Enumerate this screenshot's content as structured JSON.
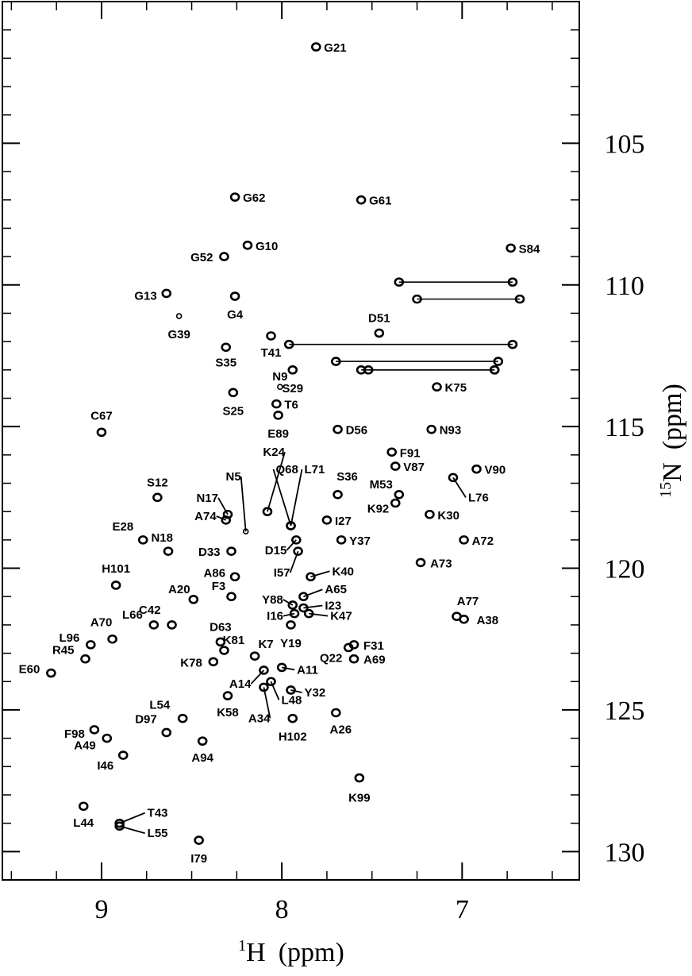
{
  "chart_data": {
    "type": "scatter",
    "title": "",
    "xlabel": {
      "isotope": "1",
      "nucleus": "H",
      "unit": "(ppm)"
    },
    "ylabel": {
      "isotope": "15",
      "nucleus": "N",
      "unit": "(ppm)"
    },
    "xlim": [
      9.55,
      6.35
    ],
    "ylim": [
      100.0,
      131.0
    ],
    "x_major_ticks": [
      9,
      8,
      7
    ],
    "x_minor_ticks": [
      9.5,
      9.25,
      8.75,
      8.5,
      8.25,
      7.75,
      7.5,
      7.25,
      6.75,
      6.5
    ],
    "y_major_ticks": [
      105,
      110,
      115,
      120,
      125,
      130
    ],
    "y_minor_ticks": [
      101,
      102,
      103,
      104,
      106,
      107,
      108,
      109,
      111,
      112,
      113,
      114,
      116,
      117,
      118,
      119,
      121,
      122,
      123,
      124,
      126,
      127,
      128,
      129
    ],
    "grid": false,
    "legend": "none",
    "series": [
      {
        "points": [
          {
            "label": "G21",
            "x": 7.81,
            "y": 101.6
          },
          {
            "label": "G62",
            "x": 8.26,
            "y": 106.9
          },
          {
            "label": "G61",
            "x": 7.56,
            "y": 107.0
          },
          {
            "label": "G10",
            "x": 8.19,
            "y": 108.6
          },
          {
            "label": "G52",
            "x": 8.32,
            "y": 109.0
          },
          {
            "label": "S84",
            "x": 6.73,
            "y": 108.7
          },
          {
            "label": "G13",
            "x": 8.64,
            "y": 110.3
          },
          {
            "label": "G4",
            "x": 8.26,
            "y": 110.4
          },
          {
            "label": "G39",
            "x": 8.57,
            "y": 111.1
          },
          {
            "label": "D51",
            "x": 7.46,
            "y": 111.7
          },
          {
            "label": "T41",
            "x": 8.06,
            "y": 111.8
          },
          {
            "label": "S35",
            "x": 8.31,
            "y": 112.2
          },
          {
            "label": "S29",
            "x": 7.94,
            "y": 113.0
          },
          {
            "label": "N9",
            "x": 8.01,
            "y": 113.6
          },
          {
            "label": "K75",
            "x": 7.14,
            "y": 113.6
          },
          {
            "label": "S25",
            "x": 8.27,
            "y": 113.8
          },
          {
            "label": "T6",
            "x": 8.03,
            "y": 114.2
          },
          {
            "label": "E89",
            "x": 8.02,
            "y": 114.6
          },
          {
            "label": "D56",
            "x": 7.69,
            "y": 115.1
          },
          {
            "label": "N93",
            "x": 7.17,
            "y": 115.1
          },
          {
            "label": "C67",
            "x": 9.0,
            "y": 115.2
          },
          {
            "label": "F91",
            "x": 7.39,
            "y": 115.9
          },
          {
            "label": "V87",
            "x": 7.37,
            "y": 116.4
          },
          {
            "label": "V90",
            "x": 6.92,
            "y": 116.5
          },
          {
            "label": "K24",
            "x": 8.08,
            "y": 118.0
          },
          {
            "label": "L76",
            "x": 7.05,
            "y": 116.8
          },
          {
            "label": "Q68",
            "x": 7.95,
            "y": 118.5
          },
          {
            "label": "L71",
            "x": 7.95,
            "y": 118.5
          },
          {
            "label": "S36",
            "x": 7.69,
            "y": 117.4
          },
          {
            "label": "M53",
            "x": 7.35,
            "y": 117.4
          },
          {
            "label": "K92",
            "x": 7.37,
            "y": 117.7
          },
          {
            "label": "S12",
            "x": 8.69,
            "y": 117.5
          },
          {
            "label": "N5",
            "x": 8.2,
            "y": 118.7
          },
          {
            "label": "N17",
            "x": 8.3,
            "y": 118.1
          },
          {
            "label": "A74",
            "x": 8.31,
            "y": 118.3
          },
          {
            "label": "K30",
            "x": 7.18,
            "y": 118.1
          },
          {
            "label": "I27",
            "x": 7.75,
            "y": 118.3
          },
          {
            "label": "E28",
            "x": 8.77,
            "y": 119.0
          },
          {
            "label": "Y37",
            "x": 7.67,
            "y": 119.0
          },
          {
            "label": "A72",
            "x": 6.99,
            "y": 119.0
          },
          {
            "label": "D15",
            "x": 7.92,
            "y": 119.0
          },
          {
            "label": "N18",
            "x": 8.63,
            "y": 119.4
          },
          {
            "label": "D33",
            "x": 8.28,
            "y": 119.4
          },
          {
            "label": "I57",
            "x": 7.91,
            "y": 119.4
          },
          {
            "label": "A73",
            "x": 7.23,
            "y": 119.8
          },
          {
            "label": "K40",
            "x": 7.84,
            "y": 120.3
          },
          {
            "label": "A86",
            "x": 8.26,
            "y": 120.3
          },
          {
            "label": "H101",
            "x": 8.92,
            "y": 120.6
          },
          {
            "label": "A20",
            "x": 8.49,
            "y": 121.1
          },
          {
            "label": "F3",
            "x": 8.28,
            "y": 121.0
          },
          {
            "label": "Y88",
            "x": 7.94,
            "y": 121.3
          },
          {
            "label": "A65",
            "x": 7.88,
            "y": 121.0
          },
          {
            "label": "I23",
            "x": 7.88,
            "y": 121.4
          },
          {
            "label": "I16",
            "x": 7.93,
            "y": 121.6
          },
          {
            "label": "K47",
            "x": 7.85,
            "y": 121.6
          },
          {
            "label": "A77",
            "x": 7.03,
            "y": 121.7
          },
          {
            "label": "A38",
            "x": 6.99,
            "y": 121.8
          },
          {
            "label": "L66",
            "x": 8.71,
            "y": 122.0
          },
          {
            "label": "C42",
            "x": 8.61,
            "y": 122.0
          },
          {
            "label": "Y19",
            "x": 7.95,
            "y": 122.0
          },
          {
            "label": "A70",
            "x": 8.94,
            "y": 122.5
          },
          {
            "label": "L96",
            "x": 9.06,
            "y": 122.7
          },
          {
            "label": "D63",
            "x": 8.34,
            "y": 122.6
          },
          {
            "label": "K81",
            "x": 8.32,
            "y": 122.9
          },
          {
            "label": "F31",
            "x": 7.6,
            "y": 122.7
          },
          {
            "label": "Q22",
            "x": 7.63,
            "y": 122.8
          },
          {
            "label": "R45",
            "x": 9.09,
            "y": 123.2
          },
          {
            "label": "K78",
            "x": 8.38,
            "y": 123.3
          },
          {
            "label": "K7",
            "x": 8.15,
            "y": 123.1
          },
          {
            "label": "A69",
            "x": 7.6,
            "y": 123.2
          },
          {
            "label": "A11",
            "x": 8.0,
            "y": 123.5
          },
          {
            "label": "E60",
            "x": 9.28,
            "y": 123.7
          },
          {
            "label": "A14",
            "x": 8.1,
            "y": 123.6
          },
          {
            "label": "L48",
            "x": 8.06,
            "y": 124.0
          },
          {
            "label": "A34",
            "x": 8.1,
            "y": 124.2
          },
          {
            "label": "Y32",
            "x": 7.95,
            "y": 124.3
          },
          {
            "label": "K58",
            "x": 8.3,
            "y": 124.5
          },
          {
            "label": "L54",
            "x": 8.55,
            "y": 125.3
          },
          {
            "label": "A26",
            "x": 7.7,
            "y": 125.1
          },
          {
            "label": "H102",
            "x": 7.94,
            "y": 125.3
          },
          {
            "label": "D97",
            "x": 8.64,
            "y": 125.8
          },
          {
            "label": "F98",
            "x": 9.04,
            "y": 125.7
          },
          {
            "label": "A49",
            "x": 8.97,
            "y": 126.0
          },
          {
            "label": "A94",
            "x": 8.44,
            "y": 126.1
          },
          {
            "label": "I46",
            "x": 8.88,
            "y": 126.6
          },
          {
            "label": "K99",
            "x": 7.57,
            "y": 127.4
          },
          {
            "label": "L44",
            "x": 9.1,
            "y": 128.4
          },
          {
            "label": "T43",
            "x": 8.9,
            "y": 129.0
          },
          {
            "label": "L55",
            "x": 8.9,
            "y": 129.1
          },
          {
            "label": "I79",
            "x": 8.46,
            "y": 129.6
          }
        ]
      }
    ],
    "side_chain_pairs": [
      {
        "x1": 7.35,
        "x2": 6.72,
        "y": 109.9
      },
      {
        "x1": 7.25,
        "x2": 6.68,
        "y": 110.5
      },
      {
        "x1": 7.96,
        "x2": 6.72,
        "y": 112.1
      },
      {
        "x1": 7.7,
        "x2": 6.8,
        "y": 112.7
      },
      {
        "x1": 7.56,
        "x2": 6.82,
        "y": 113.0
      },
      {
        "x1": 7.52,
        "x2": 6.82,
        "y": 113.0
      }
    ]
  }
}
